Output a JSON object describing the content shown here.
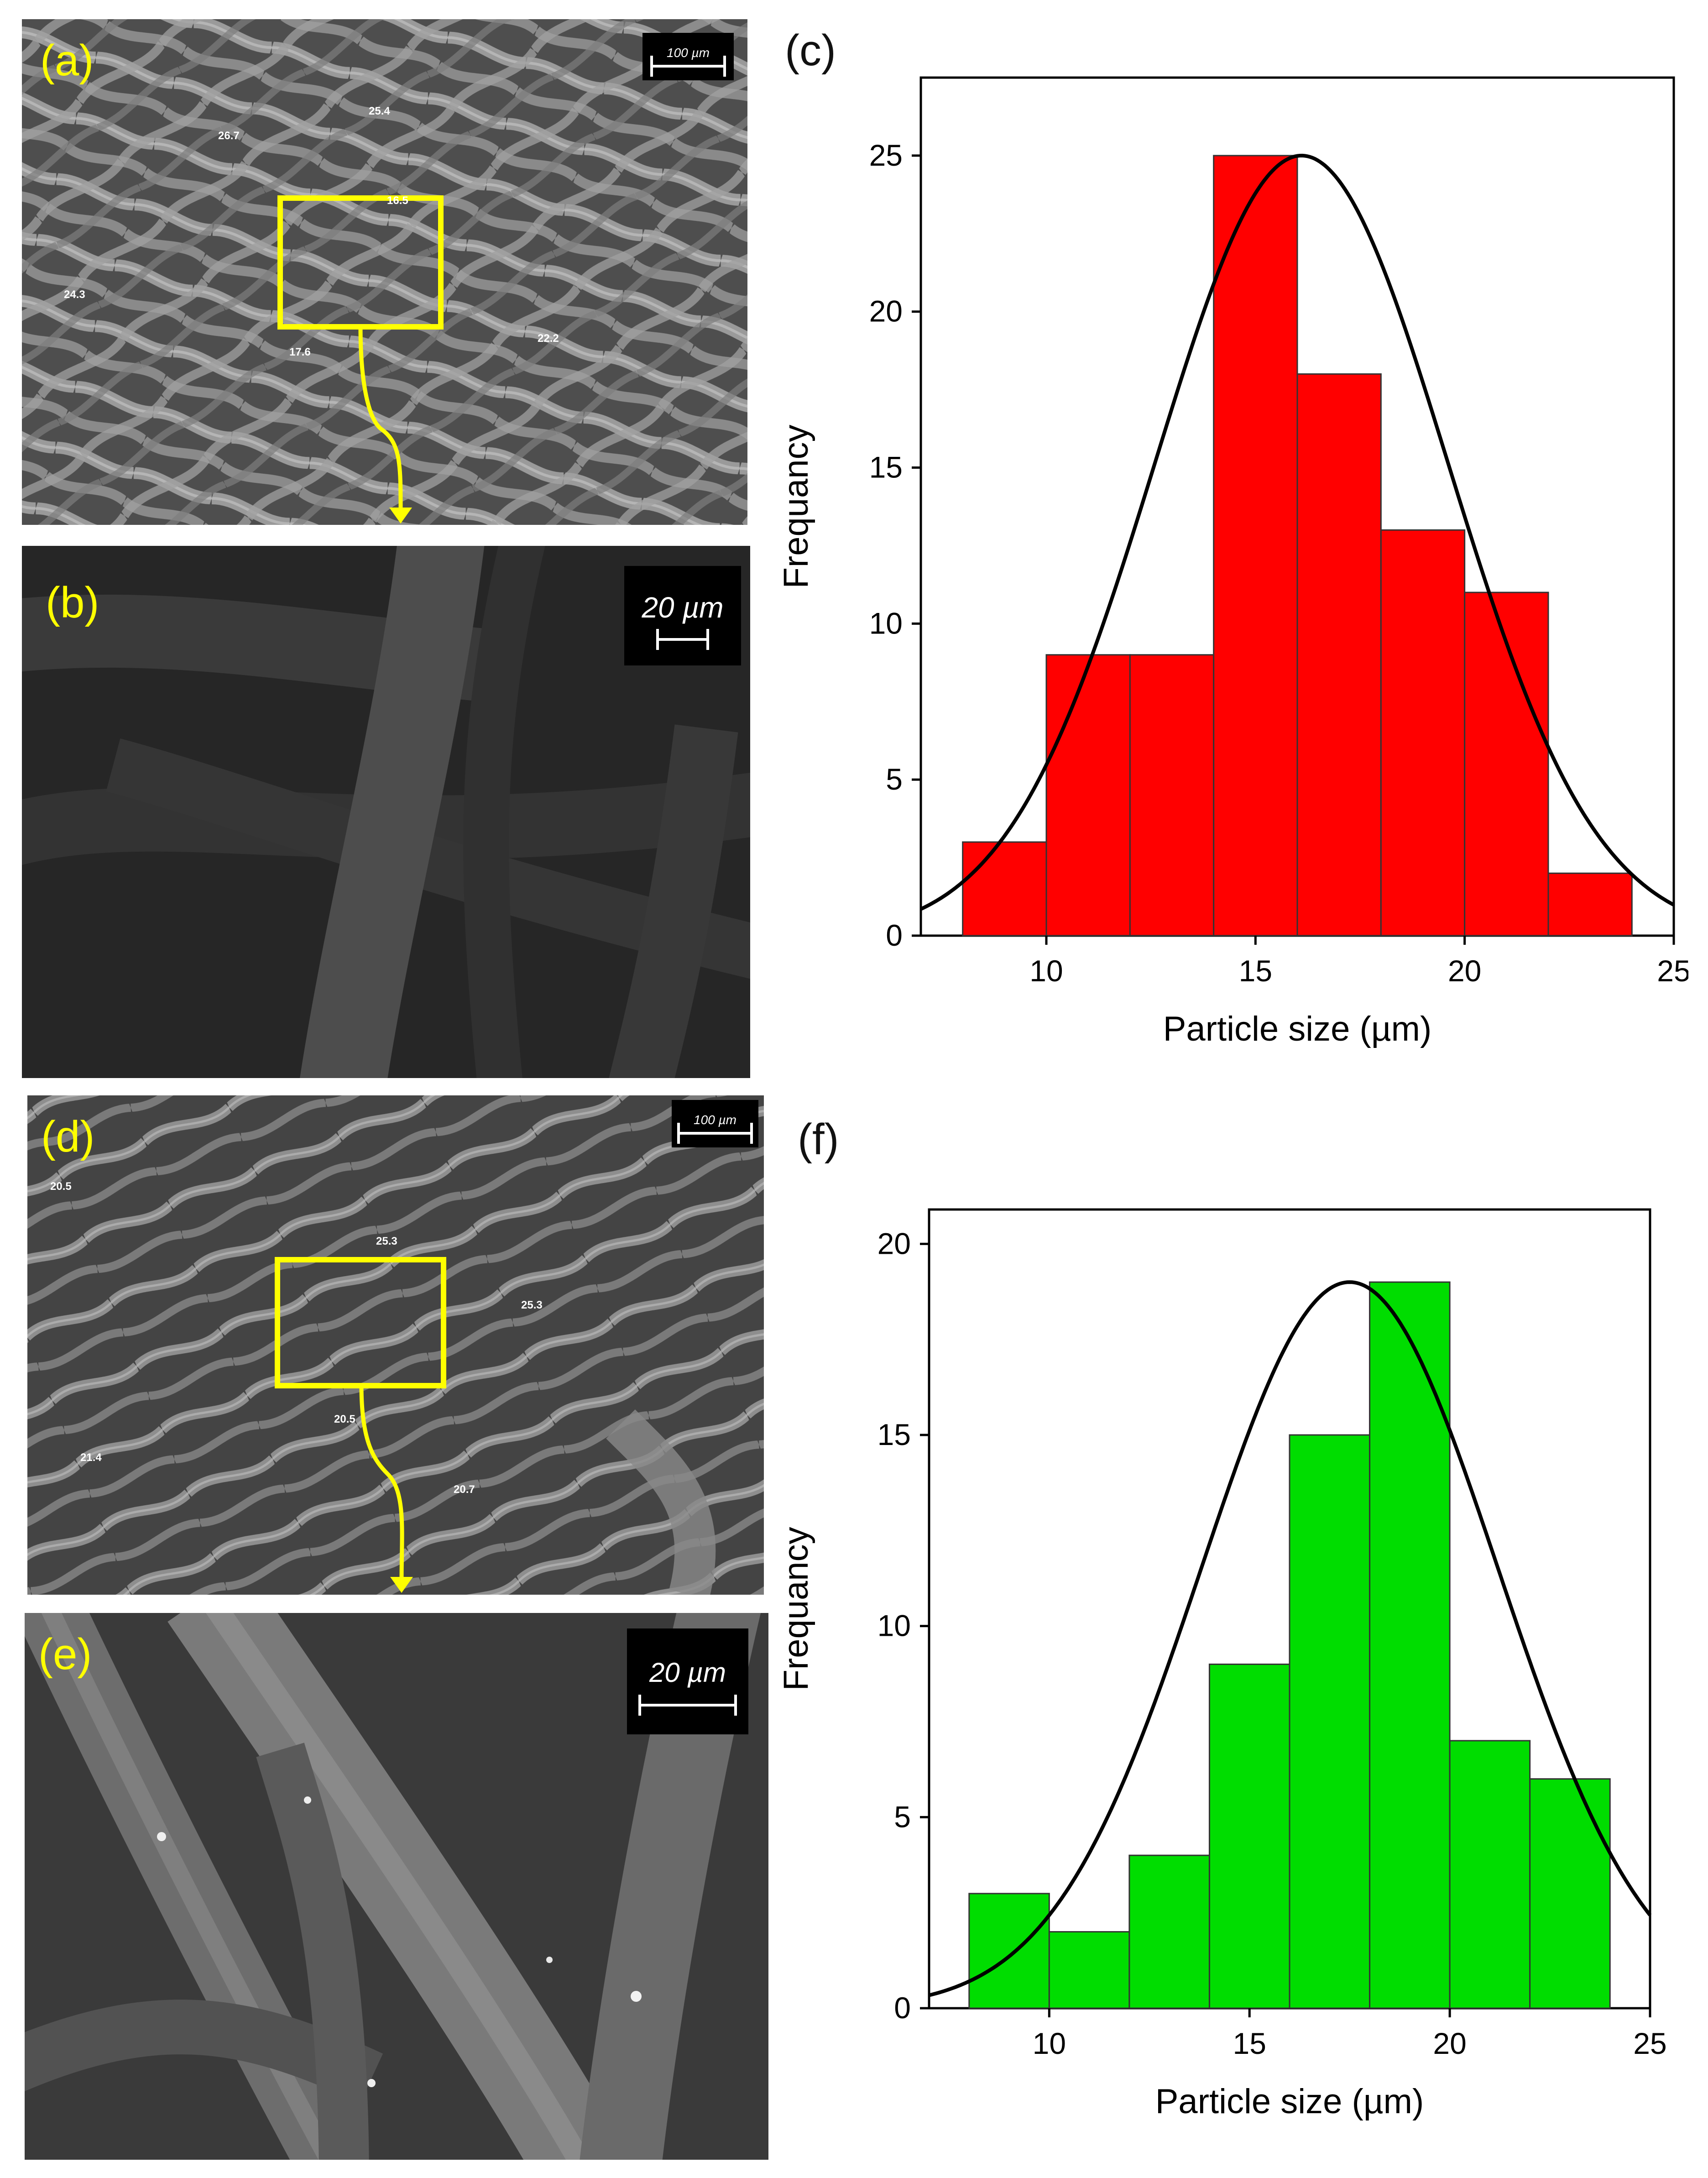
{
  "panels": {
    "a": {
      "label": "(a)",
      "scale": "100 µm",
      "measurements": [
        "26.7",
        "25.4",
        "24.3",
        "17.6",
        "22.2",
        "16.5"
      ]
    },
    "b": {
      "label": "(b)",
      "scale": "20 µm"
    },
    "c": {
      "label": "(c)"
    },
    "d": {
      "label": "(d)",
      "scale": "100 µm",
      "measurements": [
        "20.5",
        "25.3",
        "25.3",
        "21.4",
        "20.5",
        "20.7"
      ]
    },
    "e": {
      "label": "(e)",
      "scale": "20 µm"
    },
    "f": {
      "label": "(f)"
    }
  },
  "colors": {
    "highlight": "#ffff00",
    "bar_c": "#ff0000",
    "bar_f": "#00dd00",
    "curve": "#000000"
  },
  "chart_data": [
    {
      "type": "bar",
      "panel": "(c)",
      "xlabel": "Particle size (µm)",
      "ylabel": "Frequancy",
      "bins": [
        [
          8,
          10
        ],
        [
          10,
          12
        ],
        [
          12,
          14
        ],
        [
          14,
          16
        ],
        [
          16,
          18
        ],
        [
          18,
          20
        ],
        [
          20,
          22
        ],
        [
          22,
          24
        ]
      ],
      "values": [
        3,
        9,
        9,
        25,
        18,
        13,
        11,
        2
      ],
      "fit": {
        "type": "gaussian",
        "mean": 16.1,
        "sd": 3.5,
        "peak": 25
      },
      "xlim": [
        7,
        25
      ],
      "ylim": [
        0,
        27.5
      ],
      "xticks": [
        "10",
        "15",
        "20",
        "25"
      ],
      "yticks": [
        "0",
        "5",
        "10",
        "15",
        "20",
        "25"
      ],
      "color": "#ff0000"
    },
    {
      "type": "bar",
      "panel": "(f)",
      "xlabel": "Particle size (µm)",
      "ylabel": "Frequancy",
      "bins": [
        [
          8,
          10
        ],
        [
          10,
          12
        ],
        [
          12,
          14
        ],
        [
          14,
          16
        ],
        [
          16,
          18
        ],
        [
          18,
          20
        ],
        [
          20,
          22
        ],
        [
          22,
          24
        ]
      ],
      "values": [
        3,
        2,
        4,
        9,
        15,
        19,
        7,
        6
      ],
      "fit": {
        "type": "gaussian",
        "mean": 17.5,
        "sd": 3.7,
        "peak": 19
      },
      "xlim": [
        7,
        25
      ],
      "ylim": [
        0,
        20.9
      ],
      "xticks": [
        "10",
        "15",
        "20",
        "25"
      ],
      "yticks": [
        "0",
        "5",
        "10",
        "15",
        "20"
      ],
      "color": "#00dd00"
    }
  ]
}
